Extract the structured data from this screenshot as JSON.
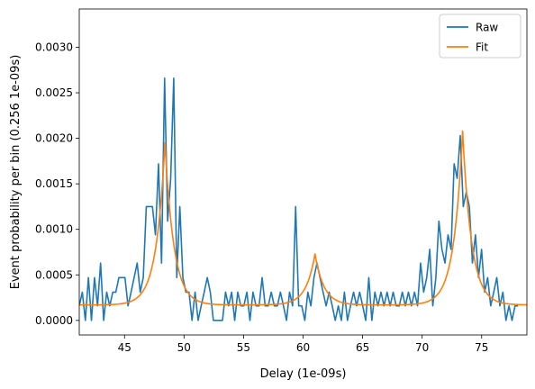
{
  "chart_data": {
    "type": "line",
    "title": "",
    "xlabel": "Delay (1e-09s)",
    "ylabel": "Event probability per bin (0.256 1e-09s)",
    "xlim": [
      41.2,
      78.8
    ],
    "ylim": [
      -0.00016,
      0.00342
    ],
    "xticks": [
      45,
      50,
      55,
      60,
      65,
      70,
      75
    ],
    "yticks": [
      0.0,
      0.0005,
      0.001,
      0.0015,
      0.002,
      0.0025,
      0.003
    ],
    "ytick_labels": [
      "0.0000",
      "0.0005",
      "0.0010",
      "0.0015",
      "0.0020",
      "0.0025",
      "0.0030"
    ],
    "grid": false,
    "legend_position": "top-right",
    "series": [
      {
        "name": "Raw",
        "color": "#1f77b4",
        "x_start": 41.2,
        "x_step": 0.256,
        "y": [
          0.00016,
          0.00031,
          0.0,
          0.00047,
          0.0,
          0.00047,
          0.00016,
          0.00063,
          0.0,
          0.00031,
          0.00016,
          0.00031,
          0.00031,
          0.00047,
          0.00047,
          0.00047,
          0.00016,
          0.00031,
          0.00047,
          0.00063,
          0.00031,
          0.00047,
          0.00125,
          0.00125,
          0.00125,
          0.00094,
          0.00172,
          0.00063,
          0.00266,
          0.00109,
          0.00156,
          0.00266,
          0.00047,
          0.00125,
          0.00047,
          0.00031,
          0.00031,
          0.0,
          0.00031,
          0.0,
          0.00016,
          0.00031,
          0.00047,
          0.00031,
          0.0,
          0.0,
          0.0,
          0.0,
          0.00031,
          0.00016,
          0.00031,
          0.0,
          0.00031,
          0.00016,
          0.00016,
          0.00031,
          0.0,
          0.00031,
          0.00016,
          0.00016,
          0.00047,
          0.00016,
          0.00016,
          0.00031,
          0.00016,
          0.00016,
          0.00031,
          0.00016,
          0.0,
          0.00031,
          0.00016,
          0.00125,
          0.00016,
          0.00016,
          0.0,
          0.00031,
          0.00016,
          0.00047,
          0.00063,
          0.00047,
          0.00031,
          0.00016,
          0.00031,
          0.00016,
          0.0,
          0.00016,
          0.0,
          0.00031,
          0.0,
          0.00016,
          0.00031,
          0.00016,
          0.00031,
          0.00016,
          0.0,
          0.00047,
          0.0,
          0.00031,
          0.00016,
          0.00031,
          0.00016,
          0.00031,
          0.00016,
          0.00031,
          0.00016,
          0.00016,
          0.00031,
          0.00016,
          0.00031,
          0.00016,
          0.00031,
          0.00016,
          0.00063,
          0.00031,
          0.00047,
          0.00078,
          0.00016,
          0.00047,
          0.00109,
          0.00078,
          0.00063,
          0.00094,
          0.00078,
          0.00172,
          0.00156,
          0.00203,
          0.00125,
          0.00141,
          0.00125,
          0.00063,
          0.00094,
          0.00047,
          0.00078,
          0.00031,
          0.00047,
          0.00016,
          0.00031,
          0.00047,
          0.00016,
          0.00031,
          0.0,
          0.00016,
          0.0,
          0.00016,
          0.00016
        ]
      },
      {
        "name": "Fit",
        "color": "#ff7f0e",
        "model": {
          "baseline": 0.00017,
          "peaks": [
            {
              "center": 48.4,
              "amplitude": 0.00178,
              "decay": 0.75
            },
            {
              "center": 61.0,
              "amplitude": 0.00056,
              "decay": 0.75
            },
            {
              "center": 73.4,
              "amplitude": 0.00191,
              "decay": 0.75
            }
          ]
        }
      }
    ]
  }
}
